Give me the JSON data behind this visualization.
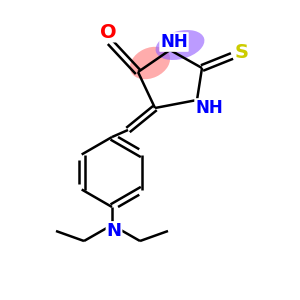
{
  "background_color": "#ffffff",
  "highlight_color_red": "#ff8080",
  "highlight_color_blue": "#9966ff",
  "atom_colors": {
    "O": "#ff0000",
    "N": "#0000ff",
    "S": "#cccc00",
    "C": "#000000"
  },
  "figsize": [
    3.0,
    3.0
  ],
  "dpi": 100
}
